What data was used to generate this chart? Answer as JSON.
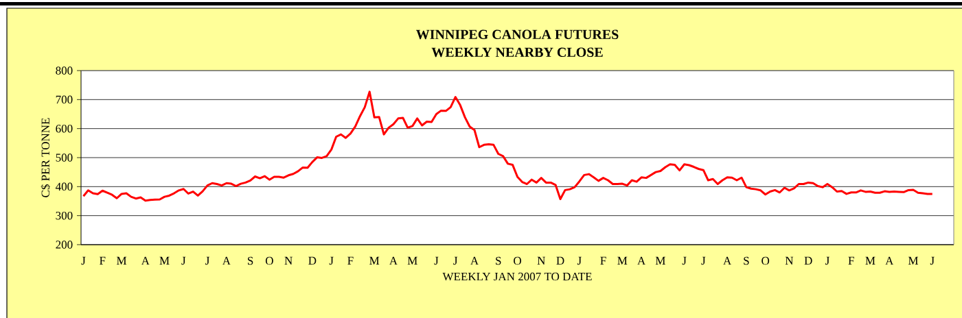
{
  "chart_data": {
    "type": "line",
    "title": "WINNIPEG CANOLA FUTURES",
    "subtitle": "WEEKLY NEARBY CLOSE",
    "xlabel": "WEEKLY JAN 2007 TO DATE",
    "ylabel": "C$ PER TONNE",
    "categories": [
      "J",
      null,
      null,
      null,
      "F",
      null,
      null,
      null,
      "M",
      null,
      null,
      null,
      null,
      "A",
      null,
      null,
      null,
      "M",
      null,
      null,
      null,
      "J",
      null,
      null,
      null,
      null,
      "J",
      null,
      null,
      null,
      "A",
      null,
      null,
      null,
      null,
      "S",
      null,
      null,
      null,
      "O",
      null,
      null,
      null,
      "N",
      null,
      null,
      null,
      null,
      "D",
      null,
      null,
      null,
      "J",
      null,
      null,
      null,
      "F",
      null,
      null,
      null,
      null,
      "M",
      null,
      null,
      null,
      "A",
      null,
      null,
      null,
      "M",
      null,
      null,
      null,
      null,
      "J",
      null,
      null,
      null,
      "J",
      null,
      null,
      null,
      "A",
      null,
      null,
      null,
      null,
      "S",
      null,
      null,
      null,
      "O",
      null,
      null,
      null,
      null,
      "N",
      null,
      null,
      null,
      "D",
      null,
      null,
      null,
      "J",
      null,
      null,
      null,
      null,
      "F",
      null,
      null,
      null,
      "M",
      null,
      null,
      null,
      "A",
      null,
      null,
      null,
      "M",
      null,
      null,
      null,
      null,
      "J",
      null,
      null,
      null,
      "J",
      null,
      null,
      null,
      null,
      "A",
      null,
      null,
      null,
      "S",
      null,
      null,
      null,
      "O",
      null,
      null,
      null,
      null,
      "N",
      null,
      null,
      null,
      "D",
      null,
      null,
      null,
      "J",
      null,
      null,
      null,
      null,
      "F",
      null,
      null,
      null,
      "M",
      null,
      null,
      null,
      "A",
      null,
      null,
      null,
      null,
      "M",
      null,
      null,
      null,
      "J",
      null,
      null,
      null,
      null
    ],
    "values": [
      367,
      387,
      377,
      374,
      386,
      379,
      372,
      360,
      375,
      377,
      365,
      359,
      363,
      352,
      354,
      355,
      356,
      365,
      369,
      377,
      387,
      392,
      376,
      383,
      369,
      384,
      404,
      412,
      409,
      404,
      412,
      410,
      402,
      410,
      414,
      421,
      435,
      429,
      436,
      424,
      434,
      434,
      431,
      439,
      444,
      453,
      466,
      465,
      485,
      501,
      499,
      505,
      528,
      572,
      580,
      568,
      583,
      607,
      643,
      674,
      727,
      639,
      640,
      580,
      603,
      615,
      635,
      637,
      603,
      609,
      635,
      611,
      624,
      623,
      650,
      662,
      661,
      674,
      709,
      681,
      639,
      607,
      595,
      536,
      544,
      546,
      544,
      513,
      505,
      479,
      475,
      434,
      416,
      409,
      424,
      414,
      430,
      414,
      414,
      406,
      357,
      388,
      391,
      398,
      418,
      440,
      443,
      432,
      420,
      430,
      422,
      409,
      409,
      410,
      404,
      422,
      417,
      432,
      430,
      440,
      450,
      454,
      467,
      477,
      475,
      456,
      477,
      474,
      468,
      461,
      457,
      422,
      426,
      409,
      422,
      432,
      431,
      422,
      431,
      398,
      393,
      391,
      387,
      373,
      383,
      388,
      380,
      396,
      387,
      394,
      409,
      409,
      414,
      412,
      402,
      398,
      409,
      398,
      383,
      385,
      375,
      380,
      380,
      387,
      382,
      383,
      379,
      379,
      384,
      382,
      383,
      382,
      381,
      388,
      389,
      379,
      377,
      375,
      375,
      null,
      null,
      null,
      null
    ],
    "color": "#ff0000",
    "ylim": [
      200,
      800
    ],
    "yticks": [
      200,
      300,
      400,
      500,
      600,
      700,
      800
    ],
    "grid": "y"
  }
}
